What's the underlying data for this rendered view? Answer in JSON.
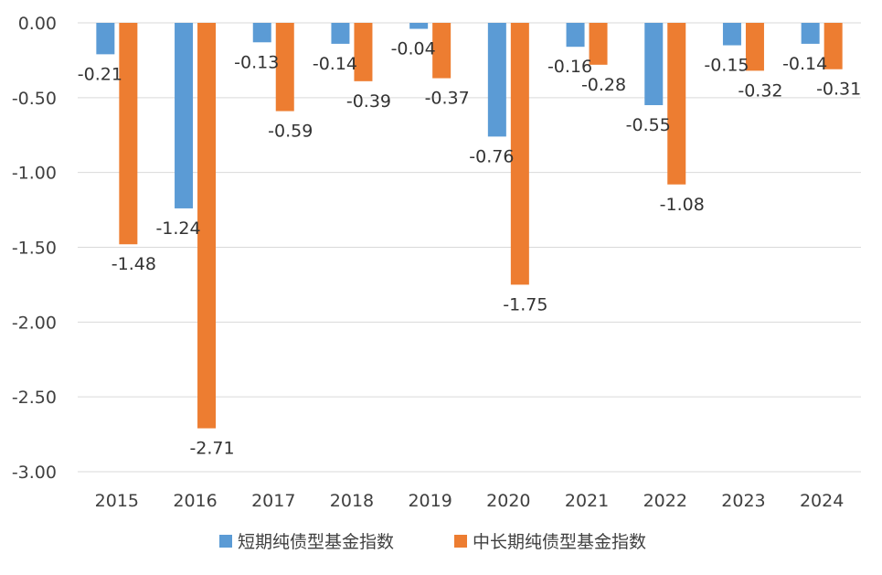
{
  "chart_data": {
    "type": "bar",
    "title": "",
    "xlabel": "",
    "ylabel": "",
    "ylim": [
      -3.0,
      0.0
    ],
    "yticks": [
      "0.00",
      "-0.50",
      "-1.00",
      "-1.50",
      "-2.00",
      "-2.50",
      "-3.00"
    ],
    "ytick_values": [
      0.0,
      -0.5,
      -1.0,
      -1.5,
      -2.0,
      -2.5,
      -3.0
    ],
    "grid": true,
    "legend_position": "bottom",
    "categories": [
      "2015",
      "2016",
      "2017",
      "2018",
      "2019",
      "2020",
      "2021",
      "2022",
      "2023",
      "2024"
    ],
    "series": [
      {
        "name": "短期纯债型基金指数",
        "color": "#5b9bd5",
        "values": [
          -0.21,
          -1.24,
          -0.13,
          -0.14,
          -0.04,
          -0.76,
          -0.16,
          -0.55,
          -0.15,
          -0.14
        ],
        "labels": [
          "-0.21",
          "-1.24",
          "-0.13",
          "-0.14",
          "-0.04",
          "-0.76",
          "-0.16",
          "-0.55",
          "-0.15",
          "-0.14"
        ]
      },
      {
        "name": "中长期纯债型基金指数",
        "color": "#ed7d31",
        "values": [
          -1.48,
          -2.71,
          -0.59,
          -0.39,
          -0.37,
          -1.75,
          -0.28,
          -1.08,
          -0.32,
          -0.31
        ],
        "labels": [
          "-1.48",
          "-2.71",
          "-0.59",
          "-0.39",
          "-0.37",
          "-1.75",
          "-0.28",
          "-1.08",
          "-0.32",
          "-0.31"
        ]
      }
    ]
  }
}
